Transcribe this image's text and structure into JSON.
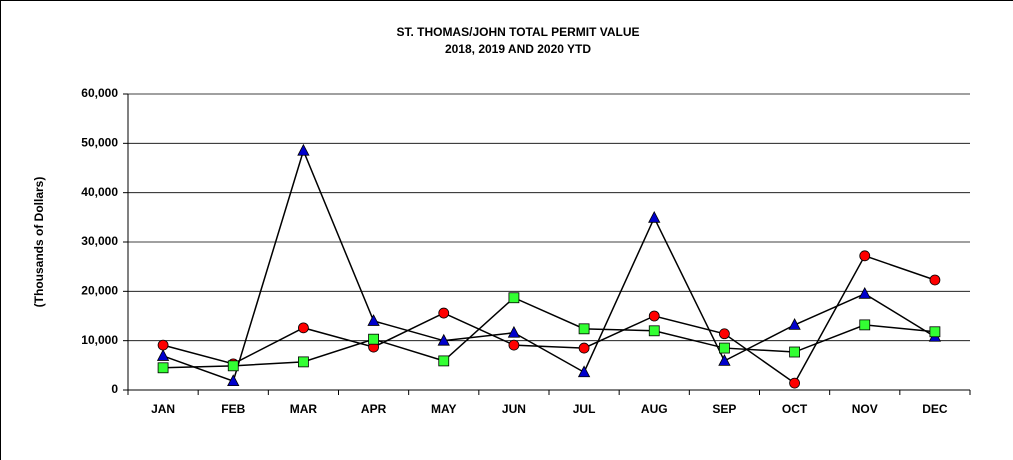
{
  "chart_data": {
    "type": "line",
    "title": "ST. THOMAS/JOHN TOTAL PERMIT VALUE",
    "subtitle": "2018, 2019 AND 2020 YTD",
    "y_label": "(Thousands of Dollars)",
    "categories": [
      "JAN",
      "FEB",
      "MAR",
      "APR",
      "MAY",
      "JUN",
      "JUL",
      "AUG",
      "SEP",
      "OCT",
      "NOV",
      "DEC"
    ],
    "line_color": "#000000",
    "series": [
      {
        "color": "#0000cc",
        "marker": "triangle",
        "values": [
          6900,
          1800,
          48500,
          14000,
          10000,
          11600,
          3600,
          34900,
          5900,
          13200,
          19500,
          10800
        ]
      },
      {
        "color": "#ff0000",
        "marker": "circle",
        "values": [
          9100,
          5300,
          12600,
          8700,
          15600,
          9100,
          8500,
          15000,
          11400,
          1400,
          27200,
          22300
        ]
      },
      {
        "color": "#33ff33",
        "marker": "square",
        "values": [
          4500,
          4900,
          5700,
          10300,
          5900,
          18700,
          12400,
          12000,
          8500,
          7700,
          13200,
          11800
        ]
      }
    ],
    "ylim": [
      0,
      60000
    ],
    "yticks": [
      0,
      {
        "value": 10000,
        "label": "10,000"
      },
      {
        "value": 20000,
        "label": "20,000"
      },
      {
        "value": 30000,
        "label": "30,000"
      },
      {
        "value": 40000,
        "label": "40,000"
      },
      {
        "value": 50000,
        "label": "50,000"
      },
      {
        "value": 60000,
        "label": "60,000"
      }
    ],
    "grid": true
  }
}
